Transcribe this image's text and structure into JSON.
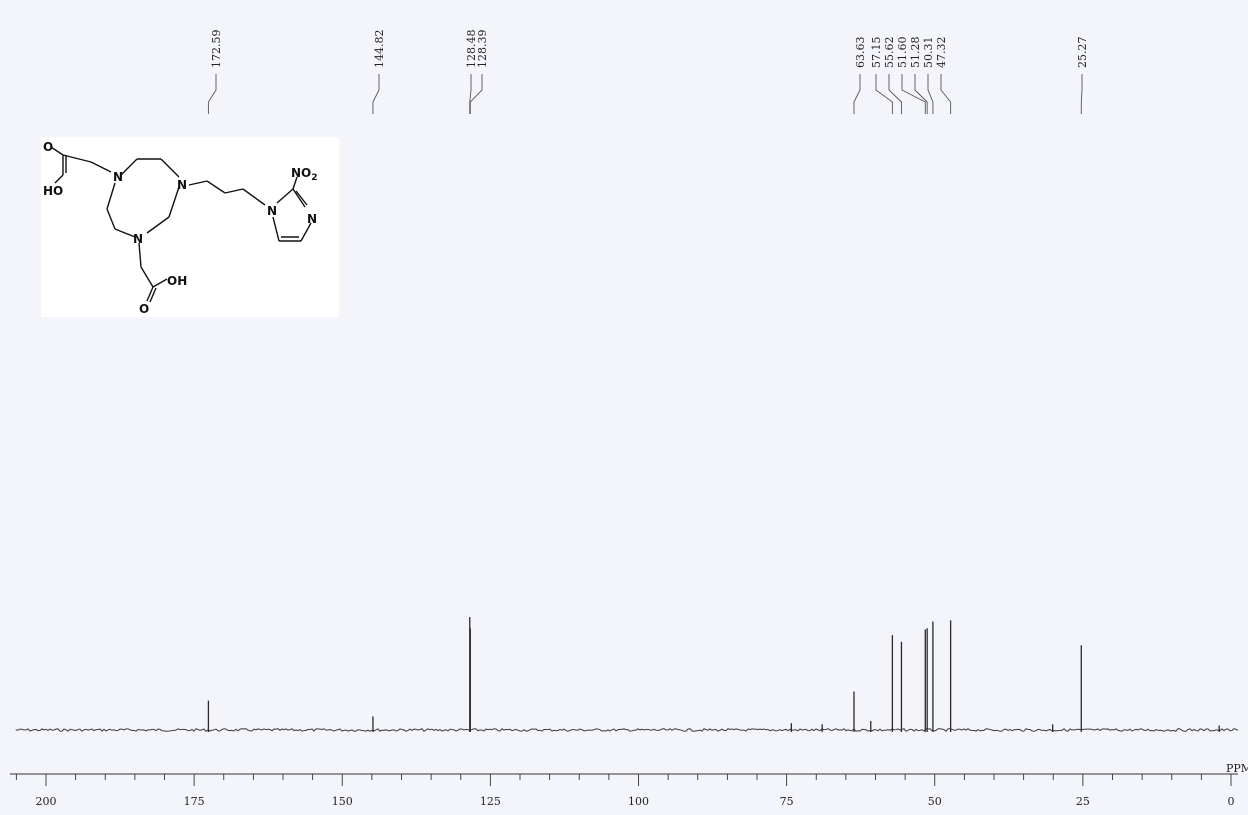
{
  "chart_data": {
    "type": "line",
    "spectrum": "13C NMR",
    "x_axis": {
      "unit_label": "PPM",
      "range": [
        203,
        -1
      ],
      "reversed": true,
      "tick_labels": [
        "200",
        "175",
        "150",
        "125",
        "100",
        "75",
        "50",
        "25",
        "0"
      ],
      "tick_values": [
        200,
        175,
        150,
        125,
        100,
        75,
        50,
        25,
        0
      ]
    },
    "peaks": [
      {
        "ppm": 172.59,
        "label": "172.59",
        "intensity": 0.26
      },
      {
        "ppm": 144.82,
        "label": "144.82",
        "intensity": 0.12
      },
      {
        "ppm": 128.48,
        "label": "128.48",
        "intensity": 1.0
      },
      {
        "ppm": 128.39,
        "label": "128.39",
        "intensity": 0.9
      },
      {
        "ppm": 63.63,
        "label": "63.63",
        "intensity": 0.34
      },
      {
        "ppm": 57.15,
        "label": "57.15",
        "intensity": 0.84
      },
      {
        "ppm": 55.62,
        "label": "55.62",
        "intensity": 0.78
      },
      {
        "ppm": 51.6,
        "label": "51.60",
        "intensity": 0.89
      },
      {
        "ppm": 51.28,
        "label": "51.28",
        "intensity": 0.9
      },
      {
        "ppm": 50.31,
        "label": "50.31",
        "intensity": 0.96
      },
      {
        "ppm": 47.32,
        "label": "47.32",
        "intensity": 0.97
      },
      {
        "ppm": 25.27,
        "label": "25.27",
        "intensity": 0.75
      }
    ],
    "minor_peaks": [
      {
        "ppm": 74.2,
        "intensity": 0.06
      },
      {
        "ppm": 69.0,
        "intensity": 0.05
      },
      {
        "ppm": 60.8,
        "intensity": 0.08
      },
      {
        "ppm": 30.1,
        "intensity": 0.05
      },
      {
        "ppm": 2.0,
        "intensity": 0.04
      }
    ],
    "title": "",
    "xlabel": "PPM",
    "ylabel": "",
    "grid": false
  },
  "structure": {
    "atoms": {
      "o_top": "O",
      "ho": "HO",
      "n1": "N",
      "n2": "N",
      "n3": "N",
      "oh": "OH",
      "o_bottom": "O",
      "n_imid": "N",
      "n_imid2": "N",
      "no2_main": "NO",
      "no2_sub": "2"
    },
    "colors": {
      "background": "#ffffff",
      "bonds": "#111111"
    }
  },
  "colors": {
    "background": "#f4f5fa",
    "trace": "#3a3a3a",
    "axis": "#333333"
  }
}
